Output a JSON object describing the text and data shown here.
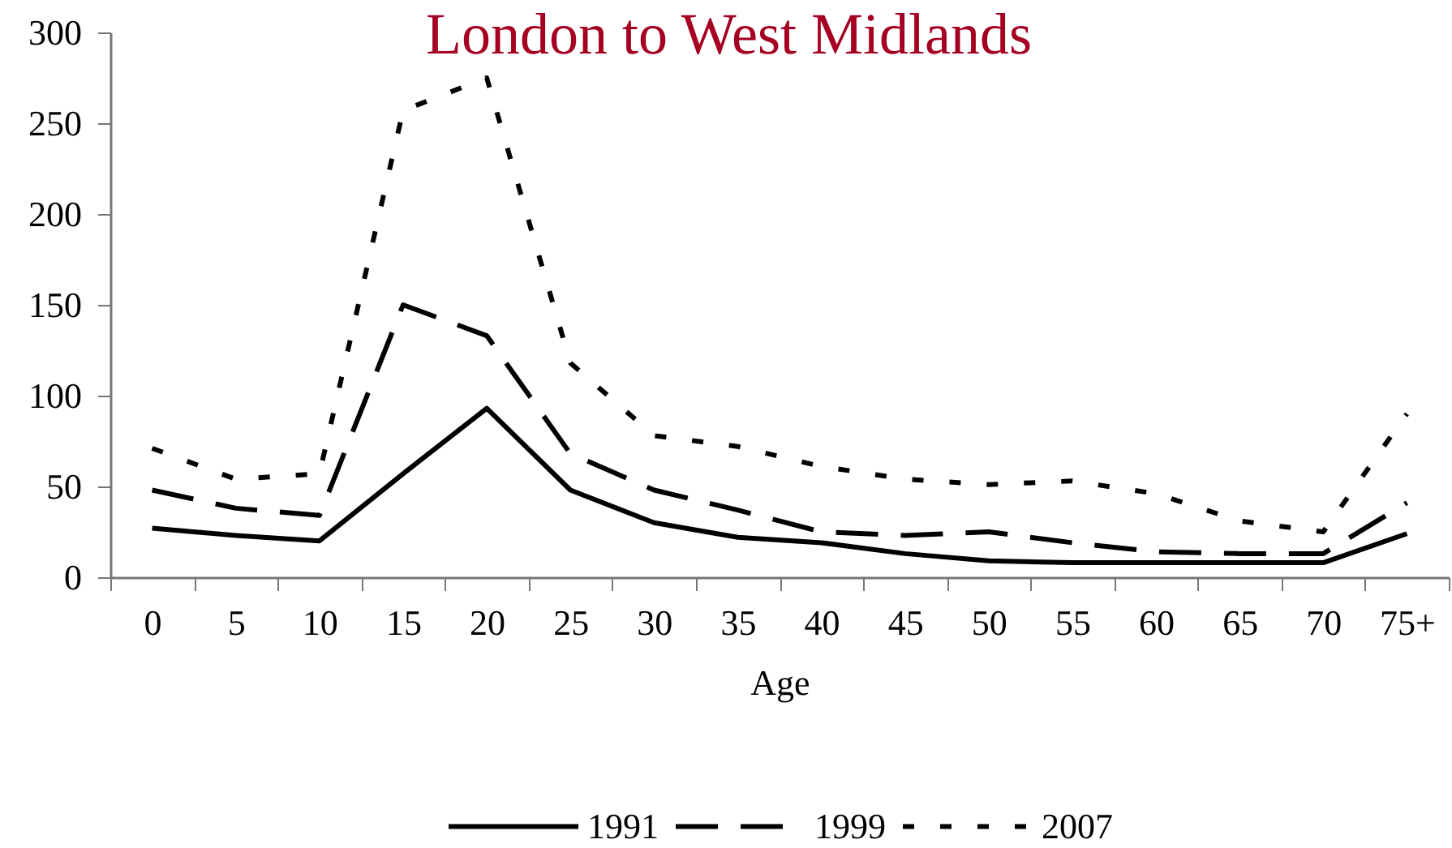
{
  "chart_data": {
    "type": "line",
    "title": "London to West Midlands",
    "xlabel": "Age",
    "categories": [
      "0",
      "5",
      "10",
      "15",
      "20",
      "25",
      "30",
      "35",
      "40",
      "45",
      "50",
      "55",
      "60",
      "65",
      "70",
      "75+"
    ],
    "series": [
      {
        "name": "1991",
        "color": "#000000",
        "line_style": "solid",
        "values": [
          27,
          23,
          20,
          57,
          93,
          48,
          30,
          22,
          19,
          13,
          9,
          8,
          8,
          8,
          8,
          24
        ]
      },
      {
        "name": "1999",
        "color": "#000000",
        "line_style": "dashed",
        "values": [
          48,
          38,
          34,
          150,
          133,
          68,
          48,
          37,
          25,
          23,
          25,
          19,
          14,
          13,
          13,
          41
        ]
      },
      {
        "name": "2007",
        "color": "#000000",
        "line_style": "dotted",
        "values": [
          71,
          54,
          57,
          257,
          275,
          118,
          78,
          72,
          61,
          54,
          51,
          53,
          46,
          31,
          25,
          90
        ]
      }
    ],
    "ylim": [
      0,
      300
    ],
    "yticks": [
      0,
      50,
      100,
      150,
      200,
      250,
      300
    ],
    "grid": false,
    "legend": "bottom"
  }
}
